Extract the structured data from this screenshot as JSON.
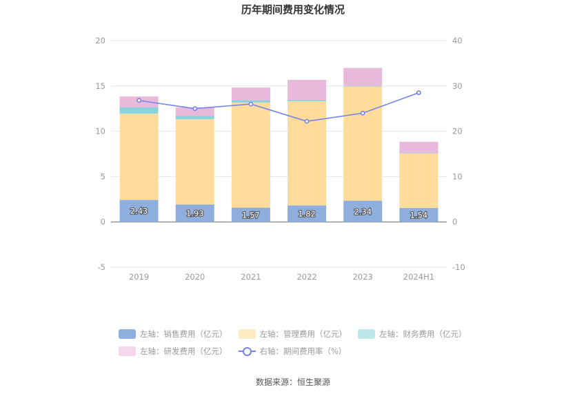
{
  "chart_data": {
    "type": "bar",
    "title": "历年期间费用变化情况",
    "categories": [
      "2019",
      "2020",
      "2021",
      "2022",
      "2023",
      "2024H1"
    ],
    "stacked": true,
    "left_axis": {
      "ylim": [
        -5,
        20
      ],
      "ticks": [
        -5,
        0,
        5,
        10,
        15,
        20
      ]
    },
    "right_axis": {
      "ylim": [
        -10,
        40
      ],
      "ticks": [
        -10,
        0,
        10,
        20,
        30,
        40
      ]
    },
    "series": [
      {
        "name": "左轴：销售费用（亿元）",
        "color": "#8eaedd",
        "values": [
          2.43,
          1.93,
          1.57,
          1.82,
          2.34,
          1.54
        ],
        "labels": [
          "2.43",
          "1.93",
          "1.57",
          "1.82",
          "2.34",
          "1.54"
        ]
      },
      {
        "name": "左轴：管理费用（亿元）",
        "color": "#ffdb9c",
        "values": [
          9.5,
          9.4,
          11.6,
          11.5,
          12.6,
          6.0
        ]
      },
      {
        "name": "左轴：财务费用（亿元）",
        "color": "#89d4dc",
        "values": [
          0.7,
          0.35,
          0.25,
          0.15,
          0.05,
          0.05
        ]
      },
      {
        "name": "左轴：研发费用（亿元）",
        "color": "#e8b9da",
        "values": [
          1.2,
          0.95,
          1.4,
          2.2,
          2.0,
          1.25
        ]
      },
      {
        "name": "右轴：期间费用率（%）",
        "type": "line",
        "axis": "right",
        "color": "#7583e8",
        "values": [
          26.8,
          25.0,
          26.0,
          22.2,
          24.0,
          28.5
        ]
      }
    ],
    "legend": {
      "placement": "bottom"
    },
    "source": "数据来源：恒生聚源"
  },
  "legend_swatches": [
    {
      "name": "左轴：销售费用（亿元）",
      "color": "#8eaedd"
    },
    {
      "name": "左轴：管理费用（亿元）",
      "color": "#fde9c2"
    },
    {
      "name": "左轴：财务费用（亿元）",
      "color": "#bde8ea"
    },
    {
      "name": "左轴：研发费用（亿元）",
      "color": "#f3d9ea"
    },
    {
      "name": "右轴：期间费用率（%）",
      "color": "#7583e8"
    }
  ]
}
